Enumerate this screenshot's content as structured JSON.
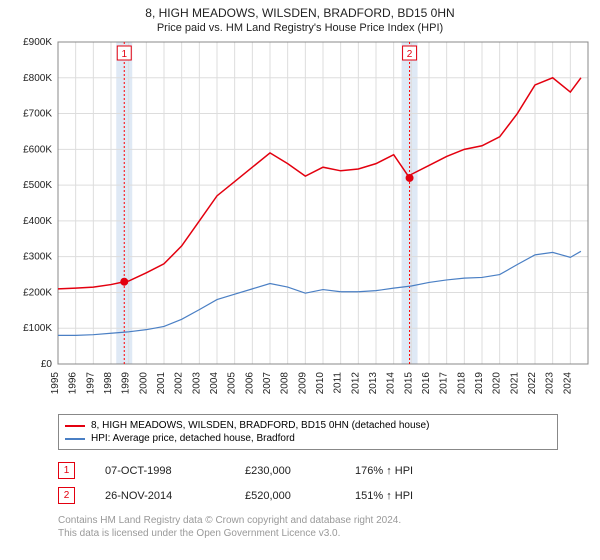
{
  "title_line1": "8, HIGH MEADOWS, WILSDEN, BRADFORD, BD15 0HN",
  "title_line2": "Price paid vs. HM Land Registry's House Price Index (HPI)",
  "chart": {
    "type": "line",
    "background_color": "#ffffff",
    "grid_color": "#dddddd",
    "axis_color": "#888888",
    "y_axis": {
      "min": 0,
      "max": 900000,
      "tick_step": 100000,
      "tick_labels": [
        "£0",
        "£100K",
        "£200K",
        "£300K",
        "£400K",
        "£500K",
        "£600K",
        "£700K",
        "£800K",
        "£900K"
      ],
      "font_size": 10
    },
    "x_axis": {
      "min": 1995,
      "max": 2025,
      "ticks": [
        1995,
        1996,
        1997,
        1998,
        1999,
        2000,
        2001,
        2002,
        2003,
        2004,
        2005,
        2006,
        2007,
        2008,
        2009,
        2010,
        2011,
        2012,
        2013,
        2014,
        2015,
        2016,
        2017,
        2018,
        2019,
        2020,
        2021,
        2022,
        2023,
        2024
      ],
      "font_size": 10
    },
    "band_color": "#dfe9f5",
    "sale_bands": [
      {
        "year": 1998.75
      },
      {
        "year": 2014.9
      }
    ],
    "marker_line_color": "#ff0000",
    "marker_dash": "2,2",
    "series": [
      {
        "id": "property",
        "label": "8, HIGH MEADOWS, WILSDEN, BRADFORD, BD15 0HN (detached house)",
        "color": "#e3000f",
        "line_width": 1.5,
        "points": [
          [
            1995,
            210000
          ],
          [
            1996,
            212000
          ],
          [
            1997,
            215000
          ],
          [
            1998,
            222000
          ],
          [
            1998.75,
            230000
          ],
          [
            1999,
            232000
          ],
          [
            2000,
            255000
          ],
          [
            2001,
            280000
          ],
          [
            2002,
            330000
          ],
          [
            2003,
            400000
          ],
          [
            2004,
            470000
          ],
          [
            2005,
            510000
          ],
          [
            2006,
            550000
          ],
          [
            2007,
            590000
          ],
          [
            2008,
            560000
          ],
          [
            2009,
            525000
          ],
          [
            2010,
            550000
          ],
          [
            2011,
            540000
          ],
          [
            2012,
            545000
          ],
          [
            2013,
            560000
          ],
          [
            2014,
            585000
          ],
          [
            2014.9,
            520000
          ],
          [
            2015,
            530000
          ],
          [
            2016,
            555000
          ],
          [
            2017,
            580000
          ],
          [
            2018,
            600000
          ],
          [
            2019,
            610000
          ],
          [
            2020,
            635000
          ],
          [
            2021,
            700000
          ],
          [
            2022,
            780000
          ],
          [
            2023,
            800000
          ],
          [
            2024,
            760000
          ],
          [
            2024.6,
            800000
          ]
        ]
      },
      {
        "id": "hpi",
        "label": "HPI: Average price, detached house, Bradford",
        "color": "#4a7fc4",
        "line_width": 1.2,
        "points": [
          [
            1995,
            80000
          ],
          [
            1996,
            80000
          ],
          [
            1997,
            82000
          ],
          [
            1998,
            86000
          ],
          [
            1999,
            90000
          ],
          [
            2000,
            96000
          ],
          [
            2001,
            105000
          ],
          [
            2002,
            125000
          ],
          [
            2003,
            152000
          ],
          [
            2004,
            180000
          ],
          [
            2005,
            195000
          ],
          [
            2006,
            210000
          ],
          [
            2007,
            225000
          ],
          [
            2008,
            215000
          ],
          [
            2009,
            198000
          ],
          [
            2010,
            208000
          ],
          [
            2011,
            202000
          ],
          [
            2012,
            202000
          ],
          [
            2013,
            205000
          ],
          [
            2014,
            212000
          ],
          [
            2015,
            218000
          ],
          [
            2016,
            228000
          ],
          [
            2017,
            235000
          ],
          [
            2018,
            240000
          ],
          [
            2019,
            242000
          ],
          [
            2020,
            250000
          ],
          [
            2021,
            278000
          ],
          [
            2022,
            305000
          ],
          [
            2023,
            312000
          ],
          [
            2024,
            298000
          ],
          [
            2024.6,
            315000
          ]
        ]
      }
    ],
    "sale_markers": [
      {
        "n": "1",
        "year": 1998.75,
        "value": 230000,
        "color": "#e3000f"
      },
      {
        "n": "2",
        "year": 2014.9,
        "value": 520000,
        "color": "#e3000f"
      }
    ]
  },
  "legend": {
    "series1_label": "8, HIGH MEADOWS, WILSDEN, BRADFORD, BD15 0HN (detached house)",
    "series2_label": "HPI: Average price, detached house, Bradford"
  },
  "sales": [
    {
      "n": "1",
      "date": "07-OCT-1998",
      "price": "£230,000",
      "hpi": "176% ↑ HPI",
      "color": "#e3000f"
    },
    {
      "n": "2",
      "date": "26-NOV-2014",
      "price": "£520,000",
      "hpi": "151% ↑ HPI",
      "color": "#e3000f"
    }
  ],
  "footnote_line1": "Contains HM Land Registry data © Crown copyright and database right 2024.",
  "footnote_line2": "This data is licensed under the Open Government Licence v3.0."
}
